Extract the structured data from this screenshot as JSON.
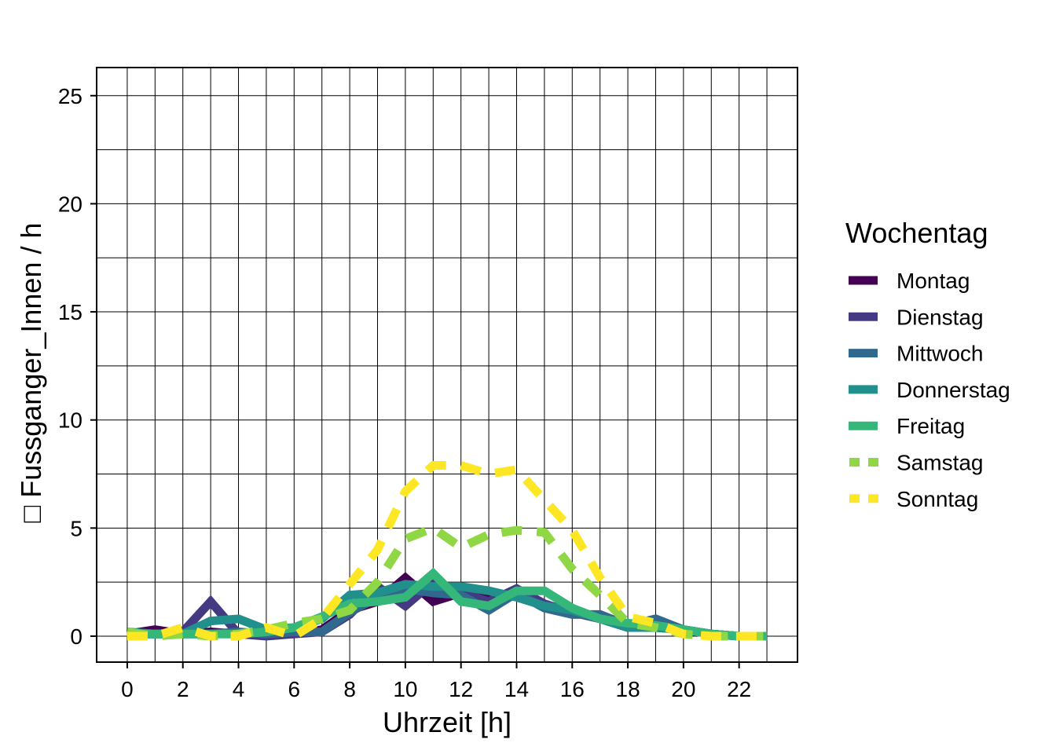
{
  "chart_data": {
    "type": "line",
    "xlabel": "Uhrzeit [h]",
    "ylabel": "Fussganger_Innen / h",
    "ylabel_glyph": "□",
    "xlim": [
      -1.1,
      24.1
    ],
    "ylim": [
      -1.2,
      26.3
    ],
    "xticks": [
      0,
      2,
      4,
      6,
      8,
      10,
      12,
      14,
      16,
      18,
      20,
      22
    ],
    "yticks": [
      0,
      5,
      10,
      15,
      20,
      25
    ],
    "x_minor_grid": [
      1,
      3,
      5,
      7,
      9,
      11,
      13,
      15,
      17,
      19,
      21,
      23
    ],
    "y_minor_grid": [
      2.5,
      7.5,
      12.5,
      17.5,
      22.5
    ],
    "grid": true,
    "legend": {
      "title": "Wochentag",
      "position": "right"
    },
    "x": [
      0,
      1,
      2,
      3,
      4,
      5,
      6,
      7,
      8,
      9,
      10,
      11,
      12,
      13,
      14,
      15,
      16,
      17,
      18,
      19,
      20,
      21,
      22,
      23
    ],
    "series": [
      {
        "name": "Montag",
        "color": "#440154",
        "dashed": false,
        "values": [
          0.1,
          0.3,
          0.1,
          0.2,
          0.1,
          0.2,
          0.1,
          0.3,
          1.2,
          1.6,
          2.7,
          1.6,
          2.0,
          1.7,
          1.9,
          1.4,
          1.2,
          0.8,
          0.5,
          0.4,
          0.3,
          0.1,
          0.0,
          0.0
        ]
      },
      {
        "name": "Dienstag",
        "color": "#443A83",
        "dashed": false,
        "values": [
          0.1,
          0.1,
          0.2,
          1.6,
          0.1,
          0.0,
          0.1,
          0.2,
          1.0,
          2.3,
          1.4,
          2.5,
          2.0,
          1.6,
          2.2,
          1.5,
          1.1,
          0.8,
          0.4,
          0.5,
          0.3,
          0.1,
          0.0,
          0.0
        ]
      },
      {
        "name": "Mittwoch",
        "color": "#31688E",
        "dashed": false,
        "values": [
          0.1,
          0.1,
          0.1,
          0.1,
          0.2,
          0.1,
          0.2,
          0.2,
          1.1,
          1.8,
          2.2,
          2.0,
          1.9,
          1.2,
          2.0,
          1.3,
          1.0,
          1.0,
          0.5,
          0.8,
          0.3,
          0.1,
          0.0,
          0.0
        ]
      },
      {
        "name": "Donnerstag",
        "color": "#21908C",
        "dashed": false,
        "values": [
          0.2,
          0.1,
          0.1,
          0.7,
          0.8,
          0.3,
          0.4,
          0.8,
          1.9,
          2.0,
          2.4,
          2.3,
          2.3,
          2.1,
          1.8,
          1.4,
          1.2,
          0.8,
          0.4,
          0.4,
          0.3,
          0.1,
          0.0,
          0.0
        ]
      },
      {
        "name": "Freitag",
        "color": "#35B779",
        "dashed": false,
        "values": [
          0.1,
          0.1,
          0.1,
          0.1,
          0.1,
          0.2,
          0.4,
          0.9,
          1.5,
          1.6,
          1.8,
          2.9,
          1.6,
          1.4,
          2.1,
          2.1,
          1.3,
          0.8,
          0.6,
          0.5,
          0.3,
          0.1,
          0.0,
          0.0
        ]
      },
      {
        "name": "Samstag",
        "color": "#8FD744",
        "dashed": true,
        "values": [
          0.2,
          0.0,
          0.1,
          0.0,
          0.1,
          0.3,
          0.6,
          0.8,
          1.2,
          2.5,
          4.5,
          5.0,
          4.1,
          4.7,
          4.9,
          4.8,
          3.1,
          1.9,
          0.6,
          0.4,
          0.1,
          0.0,
          0.0,
          0.0
        ]
      },
      {
        "name": "Sonntag",
        "color": "#FDE725",
        "dashed": true,
        "values": [
          0.0,
          0.0,
          0.4,
          0.0,
          0.0,
          0.4,
          0.0,
          0.8,
          2.4,
          4.0,
          6.7,
          7.9,
          7.9,
          7.5,
          7.7,
          6.3,
          4.9,
          2.7,
          0.9,
          0.6,
          0.1,
          0.0,
          0.0,
          0.0
        ]
      }
    ]
  }
}
